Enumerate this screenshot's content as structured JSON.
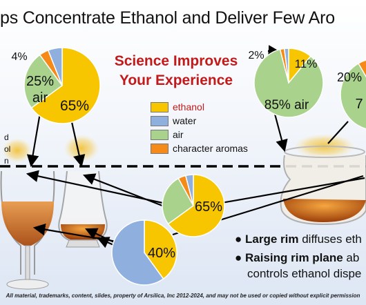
{
  "title": "ps Concentrate Ethanol and Deliver Few Aro",
  "heading_line1": "Science Improves",
  "heading_line2": "Your Experience",
  "left_cut_label_lines": [
    "d",
    "ol",
    "n"
  ],
  "colors": {
    "ethanol": "#f7c600",
    "water": "#8fb0df",
    "air": "#a9d38c",
    "character aromas": "#f58a18",
    "heading": "#c21a1a"
  },
  "chart_data": [
    {
      "type": "pie",
      "name": "top-left pie",
      "slices": [
        {
          "label": "ethanol",
          "value": 65
        },
        {
          "label": "air",
          "value": 25
        },
        {
          "label": "character aromas",
          "value": 4
        },
        {
          "label": "water",
          "value": 6
        }
      ],
      "labels": [
        "65%",
        "25%",
        "air",
        "4%"
      ]
    },
    {
      "type": "pie",
      "name": "center pie",
      "slices": [
        {
          "label": "ethanol",
          "value": 65
        },
        {
          "label": "air",
          "value": 27
        },
        {
          "label": "character aromas",
          "value": 4
        },
        {
          "label": "water",
          "value": 4
        }
      ],
      "labels": [
        "65%"
      ]
    },
    {
      "type": "pie",
      "name": "bottom pie",
      "slices": [
        {
          "label": "ethanol",
          "value": 40
        },
        {
          "label": "water",
          "value": 60
        }
      ],
      "labels": [
        "40%"
      ]
    },
    {
      "type": "pie",
      "name": "top-right pie",
      "slices": [
        {
          "label": "ethanol",
          "value": 11
        },
        {
          "label": "air",
          "value": 85
        },
        {
          "label": "character aromas",
          "value": 2
        },
        {
          "label": "water",
          "value": 2
        }
      ],
      "labels": [
        "11%",
        "85% air",
        "2%"
      ]
    },
    {
      "type": "pie",
      "name": "far-right pie (cropped)",
      "slices": [
        {
          "label": "character aromas",
          "value": 20
        },
        {
          "label": "other",
          "value": 80
        }
      ],
      "labels": [
        "20%",
        "7"
      ]
    }
  ],
  "legend": {
    "items": [
      "ethanol",
      "water",
      "air",
      "character aromas"
    ]
  },
  "bullets": [
    {
      "bold": "Large rim",
      "text": " diffuses eth"
    },
    {
      "bold": "Raising rim plane",
      "text": " ab"
    },
    {
      "bold": "",
      "text": "controls ethanol dispe"
    }
  ],
  "footer": "All material, trademarks, content, slides, property of Arsilica, Inc 2012-2024, and may not be used or copied without explicit permission"
}
